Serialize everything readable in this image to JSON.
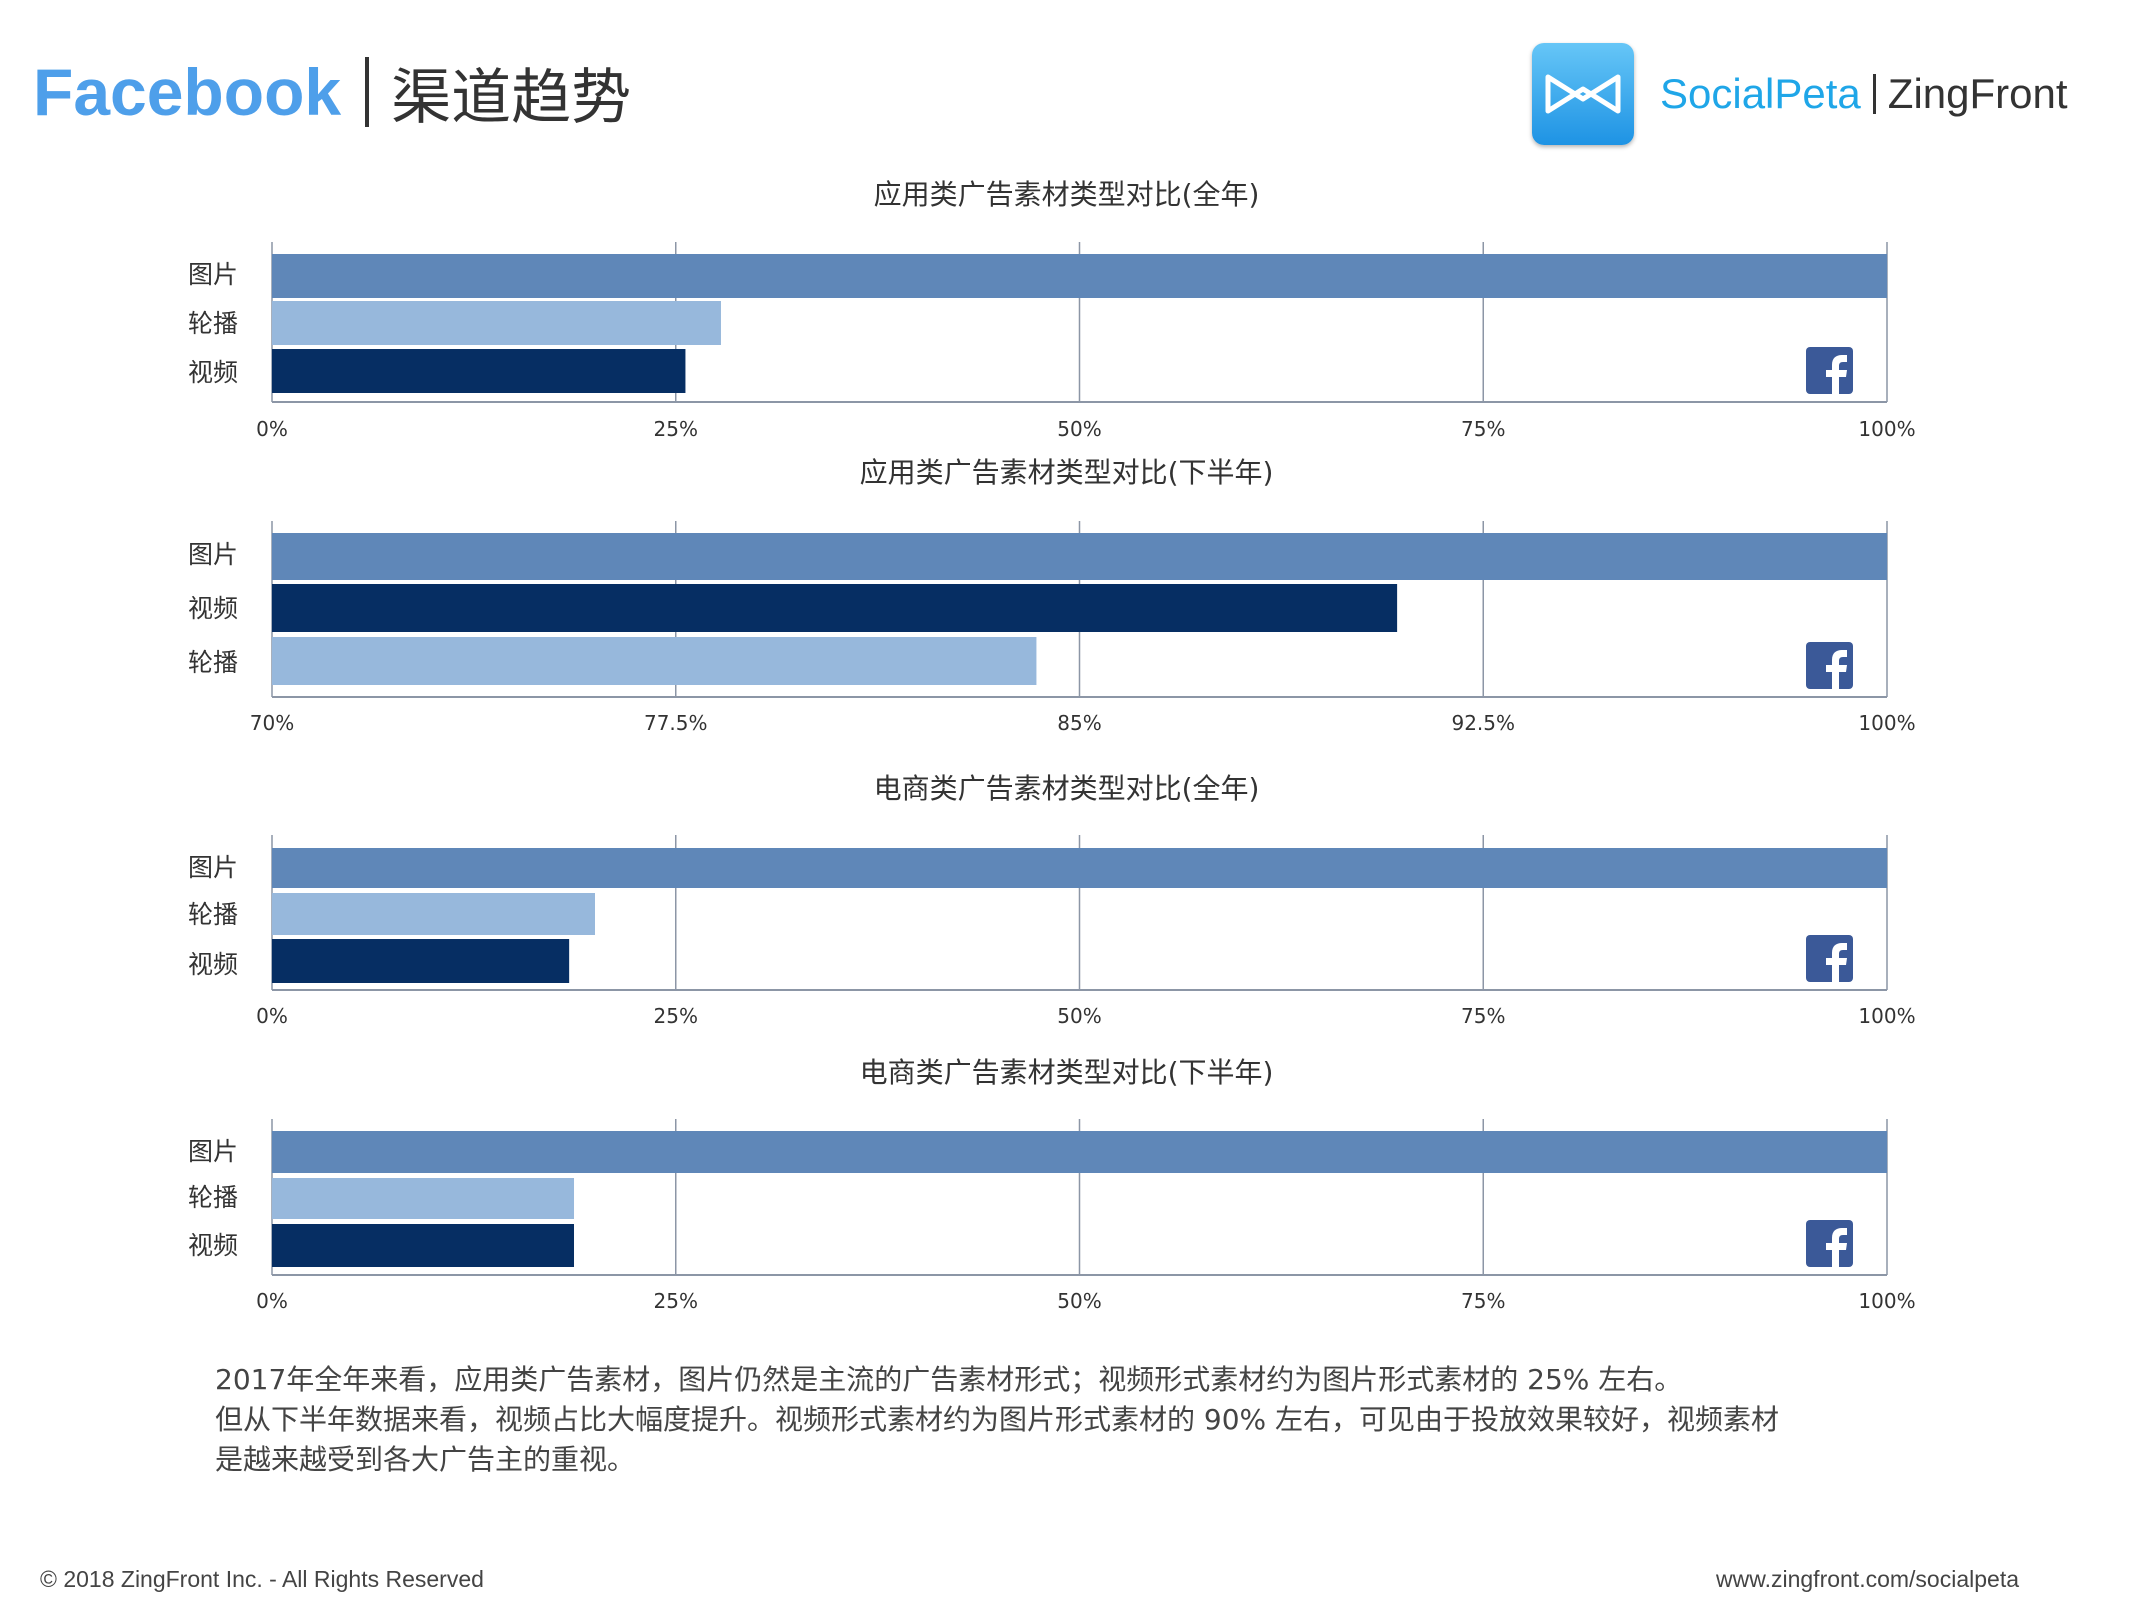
{
  "header": {
    "brand": "Facebook",
    "subtitle": "渠道趋势",
    "logo_text1": "SocialPeta",
    "logo_text2": "ZingFront"
  },
  "colors": {
    "图片": "#5f87b8",
    "轮播": "#97b8dc",
    "视频": "#062e63"
  },
  "chart_data": [
    {
      "type": "bar",
      "orientation": "horizontal",
      "title": "应用类广告素材类型对比(全年)",
      "categories": [
        "图片",
        "轮播",
        "视频"
      ],
      "values": [
        100,
        27.8,
        25.6
      ],
      "xlim": [
        0,
        100
      ],
      "xticks": [
        "0%",
        "25%",
        "50%",
        "75%",
        "100%"
      ],
      "grid": true
    },
    {
      "type": "bar",
      "orientation": "horizontal",
      "title": "应用类广告素材类型对比(下半年)",
      "categories": [
        "图片",
        "视频",
        "轮播"
      ],
      "values": [
        100,
        90.9,
        84.2
      ],
      "xlim": [
        70,
        100
      ],
      "xticks": [
        "70%",
        "77.5%",
        "85%",
        "92.5%",
        "100%"
      ],
      "grid": true
    },
    {
      "type": "bar",
      "orientation": "horizontal",
      "title": "电商类广告素材类型对比(全年)",
      "categories": [
        "图片",
        "轮播",
        "视频"
      ],
      "values": [
        100,
        20.0,
        18.4
      ],
      "xlim": [
        0,
        100
      ],
      "xticks": [
        "0%",
        "25%",
        "50%",
        "75%",
        "100%"
      ],
      "grid": true
    },
    {
      "type": "bar",
      "orientation": "horizontal",
      "title": "电商类广告素材类型对比(下半年)",
      "categories": [
        "图片",
        "轮播",
        "视频"
      ],
      "values": [
        100,
        18.7,
        18.7
      ],
      "xlim": [
        0,
        100
      ],
      "xticks": [
        "0%",
        "25%",
        "50%",
        "75%",
        "100%"
      ],
      "grid": true
    }
  ],
  "description": [
    "2017年全年来看，应用类广告素材，图片仍然是主流的广告素材形式；视频形式素材约为图片形式素材的 25% 左右。",
    "但从下半年数据来看，视频占比大幅度提升。视频形式素材约为图片形式素材的 90% 左右，可见由于投放效果较好，视频素材",
    "是越来越受到各大广告主的重视。"
  ],
  "footer": {
    "copyright": "© 2018 ZingFront Inc. - All Rights Reserved",
    "url": "www.zingfront.com/socialpeta"
  }
}
